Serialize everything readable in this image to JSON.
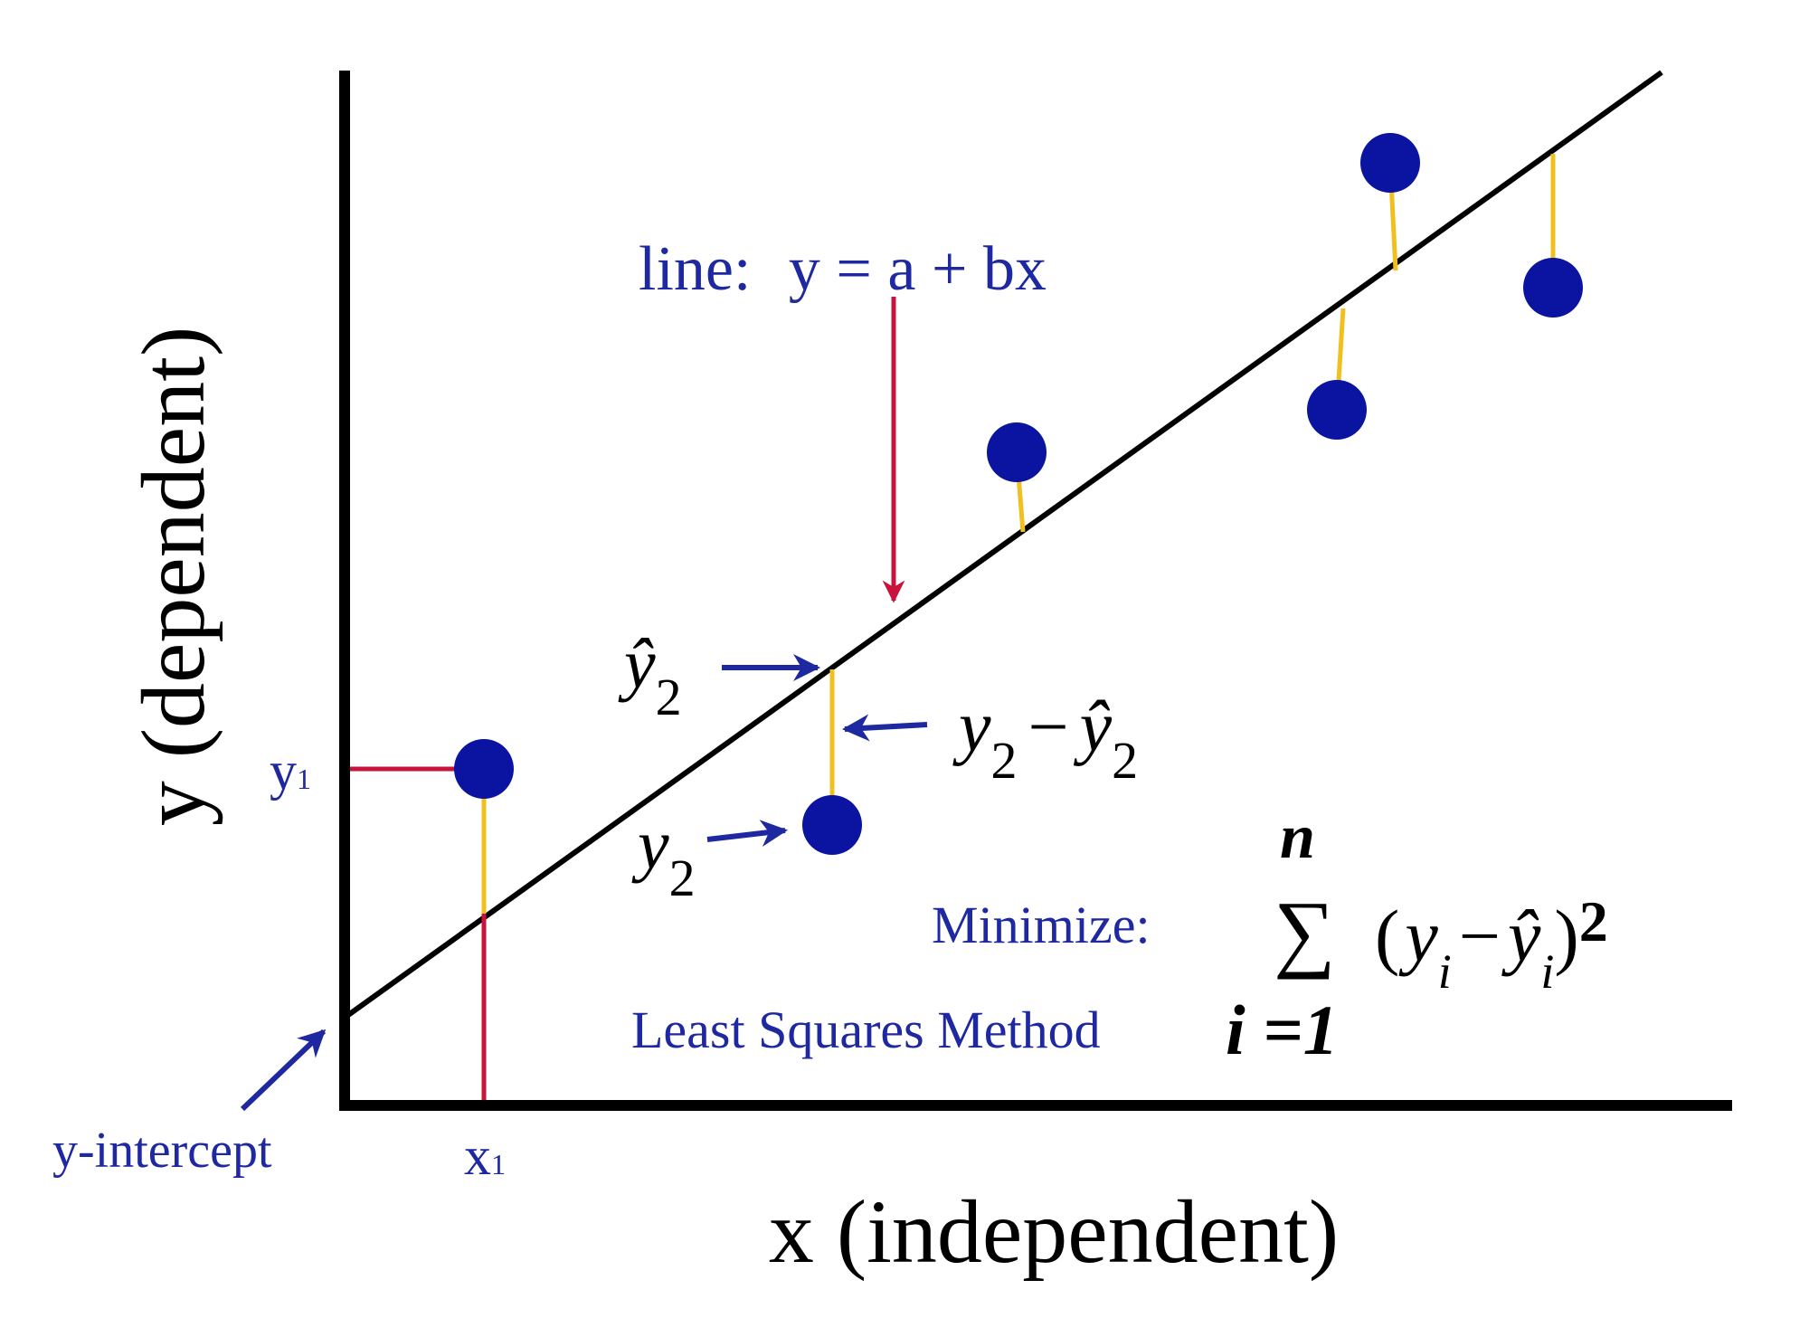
{
  "colors": {
    "axis": "#000000",
    "regression_line": "#000000",
    "point": "#0a14a0",
    "residual": "#f0c020",
    "guide": "#c8143c",
    "label_blue": "#1e28a0",
    "label_black": "#000000"
  },
  "axes": {
    "y_label": "y (dependent)",
    "x_label": "x (independent)"
  },
  "line_equation": {
    "prefix": "line:",
    "equation": "y = a + bx"
  },
  "labels": {
    "y1": "y",
    "y1_sub": "1",
    "x1": "x",
    "x1_sub": "1",
    "y_intercept": "y-intercept",
    "yhat2_base": "ŷ",
    "yhat2_sub": "2",
    "y2_base": "y",
    "y2_sub": "2",
    "residual_y": "y",
    "residual_y_sub": "2",
    "residual_minus": "−",
    "residual_yhat": "ŷ",
    "residual_yhat_sub": "2"
  },
  "formula": {
    "minimize_label": "Minimize:",
    "method_label": "Least Squares Method",
    "upper_limit": "n",
    "sigma": "∑",
    "open_paren": "(",
    "yi": "y",
    "yi_sub": "i",
    "minus": "−",
    "yhat_i": "ŷ",
    "yhat_i_sub": "i",
    "close_paren": ")",
    "exponent": "2",
    "lower_limit": "i =1"
  }
}
